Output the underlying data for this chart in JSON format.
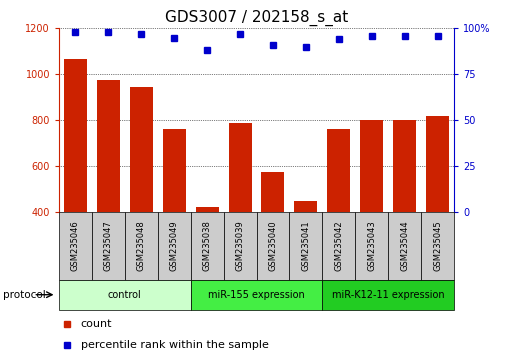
{
  "title": "GDS3007 / 202158_s_at",
  "samples": [
    "GSM235046",
    "GSM235047",
    "GSM235048",
    "GSM235049",
    "GSM235038",
    "GSM235039",
    "GSM235040",
    "GSM235041",
    "GSM235042",
    "GSM235043",
    "GSM235044",
    "GSM235045"
  ],
  "counts": [
    1065,
    975,
    945,
    762,
    423,
    790,
    575,
    450,
    762,
    800,
    800,
    820
  ],
  "percentile_ranks": [
    98,
    98,
    97,
    95,
    88,
    97,
    91,
    90,
    94,
    96,
    96,
    96
  ],
  "ylim_left": [
    400,
    1200
  ],
  "ylim_right": [
    0,
    100
  ],
  "yticks_left": [
    400,
    600,
    800,
    1000,
    1200
  ],
  "yticks_right": [
    0,
    25,
    50,
    75,
    100
  ],
  "bar_color": "#cc2200",
  "dot_color": "#0000cc",
  "grid_color": "#000000",
  "bg_color": "#ffffff",
  "bar_width": 0.7,
  "groups": [
    {
      "label": "control",
      "start": 0,
      "end": 4,
      "color": "#ccffcc"
    },
    {
      "label": "miR-155 expression",
      "start": 4,
      "end": 8,
      "color": "#44ee44"
    },
    {
      "label": "miR-K12-11 expression",
      "start": 8,
      "end": 12,
      "color": "#22cc22"
    }
  ],
  "protocol_label": "protocol",
  "legend_count_label": "count",
  "legend_pct_label": "percentile rank within the sample",
  "title_fontsize": 11,
  "tick_fontsize": 7,
  "label_fontsize": 8,
  "sample_box_color": "#cccccc",
  "sample_text_fontsize": 6
}
